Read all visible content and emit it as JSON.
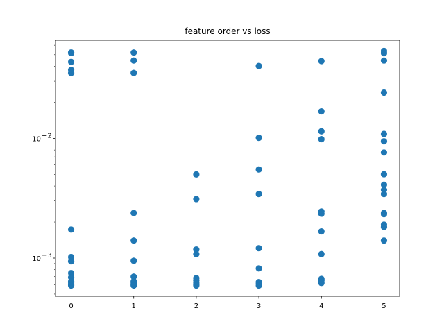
{
  "chart_data": {
    "type": "scatter",
    "title": "feature order vs loss",
    "xlabel": "",
    "ylabel": "",
    "xlim": [
      -0.25,
      5.25
    ],
    "ylim": [
      0.00048,
      0.066
    ],
    "y_scale": "log",
    "grid": false,
    "marker_color": "#1f77b4",
    "x_ticks": [
      {
        "value": 0,
        "label": "0"
      },
      {
        "value": 1,
        "label": "1"
      },
      {
        "value": 2,
        "label": "2"
      },
      {
        "value": 3,
        "label": "3"
      },
      {
        "value": 4,
        "label": "4"
      },
      {
        "value": 5,
        "label": "5"
      }
    ],
    "y_ticks": [
      {
        "value": 0.001,
        "base": "10",
        "exp": "−3"
      },
      {
        "value": 0.01,
        "base": "10",
        "exp": "−2"
      }
    ],
    "series": [
      {
        "points": [
          {
            "x": 0,
            "y": 0.0522
          },
          {
            "x": 0,
            "y": 0.0516
          },
          {
            "x": 0,
            "y": 0.0435
          },
          {
            "x": 0,
            "y": 0.0373
          },
          {
            "x": 0,
            "y": 0.0352
          },
          {
            "x": 0,
            "y": 0.00173
          },
          {
            "x": 0,
            "y": 0.00102
          },
          {
            "x": 0,
            "y": 0.00094
          },
          {
            "x": 0,
            "y": 0.00075
          },
          {
            "x": 0,
            "y": 0.00069
          },
          {
            "x": 0,
            "y": 0.00064
          },
          {
            "x": 0,
            "y": 0.00062
          },
          {
            "x": 0,
            "y": 0.0006
          },
          {
            "x": 0,
            "y": 0.00059
          },
          {
            "x": 1,
            "y": 0.0521
          },
          {
            "x": 1,
            "y": 0.0447
          },
          {
            "x": 1,
            "y": 0.0352
          },
          {
            "x": 1,
            "y": 0.00238
          },
          {
            "x": 1,
            "y": 0.0014
          },
          {
            "x": 1,
            "y": 0.00095
          },
          {
            "x": 1,
            "y": 0.0007
          },
          {
            "x": 1,
            "y": 0.00064
          },
          {
            "x": 1,
            "y": 0.00062
          },
          {
            "x": 1,
            "y": 0.0006
          },
          {
            "x": 1,
            "y": 0.00059
          },
          {
            "x": 2,
            "y": 0.005
          },
          {
            "x": 2,
            "y": 0.00311
          },
          {
            "x": 2,
            "y": 0.00118
          },
          {
            "x": 2,
            "y": 0.00108
          },
          {
            "x": 2,
            "y": 0.00068
          },
          {
            "x": 2,
            "y": 0.00065
          },
          {
            "x": 2,
            "y": 0.00062
          },
          {
            "x": 2,
            "y": 0.0006
          },
          {
            "x": 2,
            "y": 0.00059
          },
          {
            "x": 3,
            "y": 0.0402
          },
          {
            "x": 3,
            "y": 0.0101
          },
          {
            "x": 3,
            "y": 0.0055
          },
          {
            "x": 3,
            "y": 0.00343
          },
          {
            "x": 3,
            "y": 0.00121
          },
          {
            "x": 3,
            "y": 0.00082
          },
          {
            "x": 3,
            "y": 0.00063
          },
          {
            "x": 3,
            "y": 0.00061
          },
          {
            "x": 3,
            "y": 0.00059
          },
          {
            "x": 4,
            "y": 0.0442
          },
          {
            "x": 4,
            "y": 0.0168
          },
          {
            "x": 4,
            "y": 0.01145
          },
          {
            "x": 4,
            "y": 0.00985
          },
          {
            "x": 4,
            "y": 0.00245
          },
          {
            "x": 4,
            "y": 0.00235
          },
          {
            "x": 4,
            "y": 0.00167
          },
          {
            "x": 4,
            "y": 0.00108
          },
          {
            "x": 4,
            "y": 0.00067
          },
          {
            "x": 4,
            "y": 0.00065
          },
          {
            "x": 4,
            "y": 0.00062
          },
          {
            "x": 5,
            "y": 0.0538
          },
          {
            "x": 5,
            "y": 0.0515
          },
          {
            "x": 5,
            "y": 0.0447
          },
          {
            "x": 5,
            "y": 0.0241
          },
          {
            "x": 5,
            "y": 0.0109
          },
          {
            "x": 5,
            "y": 0.00945
          },
          {
            "x": 5,
            "y": 0.00762
          },
          {
            "x": 5,
            "y": 0.00502
          },
          {
            "x": 5,
            "y": 0.0041
          },
          {
            "x": 5,
            "y": 0.00371
          },
          {
            "x": 5,
            "y": 0.00343
          },
          {
            "x": 5,
            "y": 0.00238
          },
          {
            "x": 5,
            "y": 0.00233
          },
          {
            "x": 5,
            "y": 0.0019
          },
          {
            "x": 5,
            "y": 0.00182
          },
          {
            "x": 5,
            "y": 0.0014
          }
        ]
      }
    ]
  }
}
